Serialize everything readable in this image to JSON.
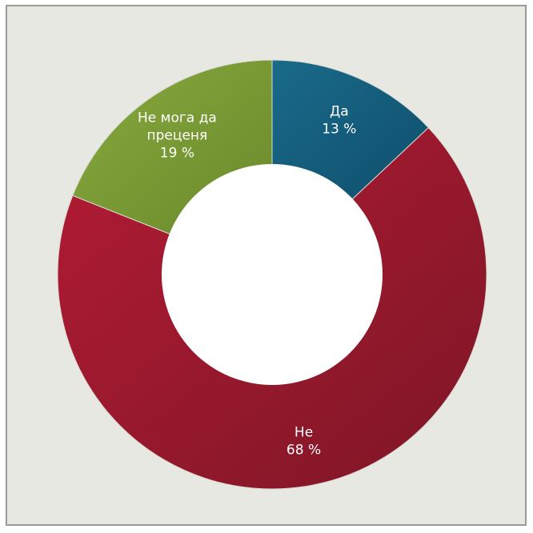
{
  "chart_data": {
    "type": "pie",
    "donut": true,
    "title": "",
    "slices": [
      {
        "name": "Да",
        "value": 13,
        "display": "13 %",
        "color": "#1a6a8a",
        "colorDark": "#0f4e6c",
        "labelLines": [
          "Да",
          "13 %"
        ]
      },
      {
        "name": "Не",
        "value": 68,
        "display": "68 %",
        "color": "#b31b34",
        "colorDark": "#7d1626",
        "labelLines": [
          "Не",
          "68 %"
        ]
      },
      {
        "name": "Не мога да преценя",
        "value": 19,
        "display": "19 %",
        "color": "#88a83e",
        "colorDark": "#6a8a2c",
        "labelLines": [
          "Не мога да",
          "преценя",
          "19 %"
        ]
      }
    ],
    "background": "#e7e8e1",
    "border_color": "#9a9b98"
  }
}
